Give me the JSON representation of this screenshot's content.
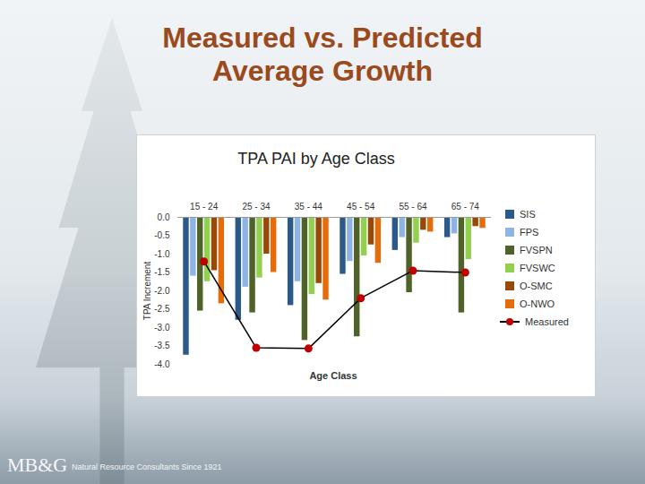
{
  "slide": {
    "title": "Measured vs. Predicted Average Growth",
    "logo": "MB&G",
    "footer": "Natural Resource Consultants Since 1921"
  },
  "chart_data": {
    "type": "bar",
    "title": "TPA PAI by Age Class",
    "x_label": "Age Class",
    "y_label": "TPA Increment",
    "categories": [
      "15 - 24",
      "25 - 34",
      "35 - 44",
      "45 - 54",
      "55 - 64",
      "65 - 74"
    ],
    "series": [
      {
        "name": "SIS",
        "color": "#2b5a8a",
        "values": [
          -3.75,
          -2.8,
          -2.4,
          -1.55,
          -0.9,
          -0.55
        ]
      },
      {
        "name": "FPS",
        "color": "#8db4e2",
        "values": [
          -1.6,
          -1.9,
          -1.75,
          -1.2,
          -0.55,
          -0.45
        ]
      },
      {
        "name": "FVSPN",
        "color": "#4f6228",
        "values": [
          -2.55,
          -2.6,
          -3.35,
          -3.25,
          -2.05,
          -2.6
        ]
      },
      {
        "name": "FVSWC",
        "color": "#92d050",
        "values": [
          -1.75,
          -1.65,
          -2.1,
          -1.05,
          -0.7,
          -1.15
        ]
      },
      {
        "name": "O-SMC",
        "color": "#984807",
        "values": [
          -1.45,
          -1.0,
          -1.8,
          -0.75,
          -0.35,
          -0.25
        ]
      },
      {
        "name": "O-NWO",
        "color": "#e46c0a",
        "values": [
          -2.35,
          -1.5,
          -2.25,
          -1.25,
          -0.4,
          -0.3
        ]
      },
      {
        "name": "Measured",
        "type": "line",
        "color": "#c00000",
        "marker": "circle",
        "values": [
          -1.2,
          -3.55,
          -3.57,
          -2.2,
          -1.45,
          -1.5
        ]
      }
    ],
    "ylim": [
      -4,
      0
    ],
    "yticks": [
      {
        "value": 0,
        "label": "0.0"
      },
      -0.5,
      {
        "value": -1,
        "label": "-1.0"
      },
      -1.5,
      {
        "value": -2,
        "label": "-2.0"
      },
      -2.5,
      {
        "value": -3,
        "label": "-3.0"
      },
      -3.5,
      {
        "value": -4,
        "label": "-4.0"
      }
    ],
    "grid": false,
    "legend": "right"
  }
}
